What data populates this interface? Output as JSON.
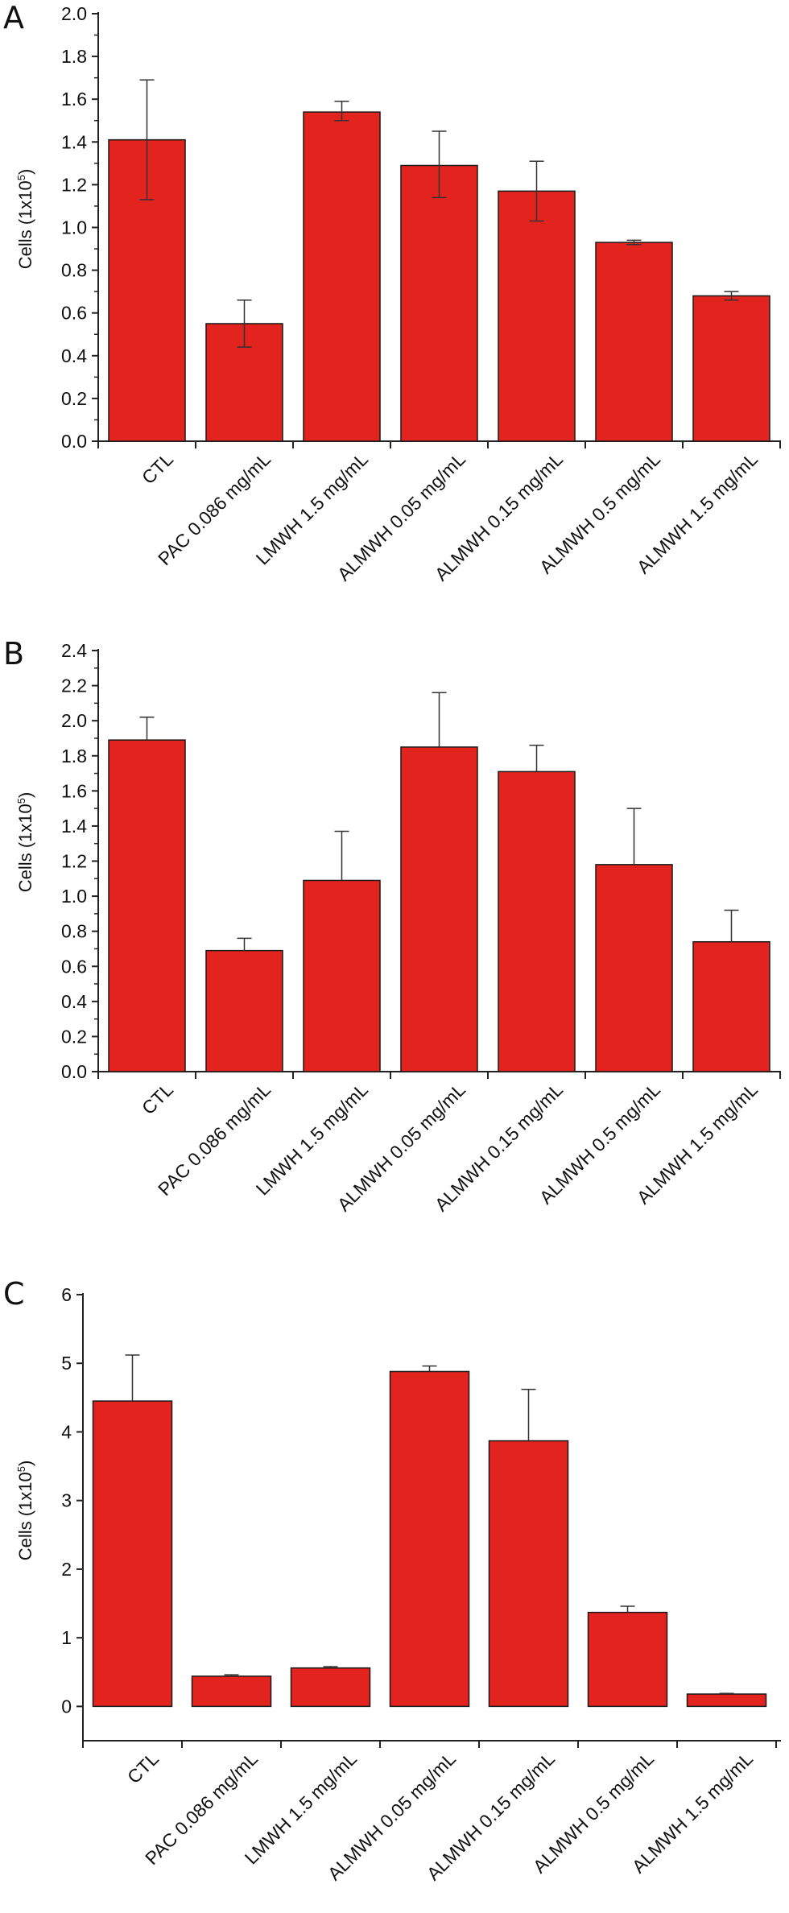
{
  "colors": {
    "bar": "#e2231e",
    "axis": "#222222",
    "text": "#111111"
  },
  "panels": [
    {
      "letter": "A",
      "ylabel": "Cells (1x10",
      "ylabel_exp": "5",
      "ylabel_close": ")"
    },
    {
      "letter": "B",
      "ylabel": "Cells (1x10",
      "ylabel_exp": "5",
      "ylabel_close": ")"
    },
    {
      "letter": "C",
      "ylabel": "Cells (1x10",
      "ylabel_exp": "5",
      "ylabel_close": ")"
    }
  ],
  "chart_data": [
    {
      "type": "bar",
      "title": "",
      "xlabel": "",
      "ylabel": "Cells (1x10^5)",
      "categories": [
        "CTL",
        "PAC 0.086 mg/mL",
        "LMWH 1.5 mg/mL",
        "ALMWH 0.05 mg/mL",
        "ALMWH 0.15 mg/mL",
        "ALMWH 0.5 mg/mL",
        "ALMWH 1.5 mg/mL"
      ],
      "values": [
        1.41,
        0.55,
        1.54,
        1.29,
        1.17,
        0.93,
        0.68
      ],
      "error_upper": [
        1.69,
        0.66,
        1.59,
        1.45,
        1.31,
        0.94,
        0.7
      ],
      "error_lower": [
        1.13,
        0.44,
        1.5,
        1.14,
        1.03,
        0.92,
        0.66
      ],
      "ylim": [
        0,
        2.0
      ],
      "yticks": [
        "0.0",
        "0.2",
        "0.4",
        "0.6",
        "0.8",
        "1.0",
        "1.2",
        "1.4",
        "1.6",
        "1.8",
        "2.0"
      ],
      "grid": false
    },
    {
      "type": "bar",
      "title": "",
      "xlabel": "",
      "ylabel": "Cells (1x10^5)",
      "categories": [
        "CTL",
        "PAC 0.086 mg/mL",
        "LMWH 1.5 mg/mL",
        "ALMWH 0.05 mg/mL",
        "ALMWH 0.15 mg/mL",
        "ALMWH 0.5 mg/mL",
        "ALMWH 1.5 mg/mL"
      ],
      "values": [
        1.89,
        0.69,
        1.09,
        1.85,
        1.71,
        1.18,
        0.74
      ],
      "error_upper": [
        2.02,
        0.76,
        1.37,
        2.16,
        1.86,
        1.5,
        0.92
      ],
      "error_lower": null,
      "ylim": [
        0,
        2.4
      ],
      "yticks": [
        "0.0",
        "0.2",
        "0.4",
        "0.6",
        "0.8",
        "1.0",
        "1.2",
        "1.4",
        "1.6",
        "1.8",
        "2.0",
        "2.2",
        "2.4"
      ],
      "grid": false
    },
    {
      "type": "bar",
      "title": "",
      "xlabel": "",
      "ylabel": "Cells (1x10^5)",
      "categories": [
        "CTL",
        "PAC 0.086 mg/mL",
        "LMWH 1.5 mg/mL",
        "ALMWH 0.05 mg/mL",
        "ALMWH 0.15 mg/mL",
        "ALMWH 0.5 mg/mL",
        "ALMWH 1.5 mg/mL"
      ],
      "values": [
        4.45,
        0.44,
        0.56,
        4.88,
        3.87,
        1.37,
        0.18
      ],
      "error_upper": [
        5.12,
        0.46,
        0.58,
        4.96,
        4.62,
        1.46,
        0.19
      ],
      "error_lower": null,
      "ylim": [
        -0.5,
        6
      ],
      "yticks": [
        "0",
        "1",
        "2",
        "3",
        "4",
        "5",
        "6"
      ],
      "grid": false
    }
  ]
}
